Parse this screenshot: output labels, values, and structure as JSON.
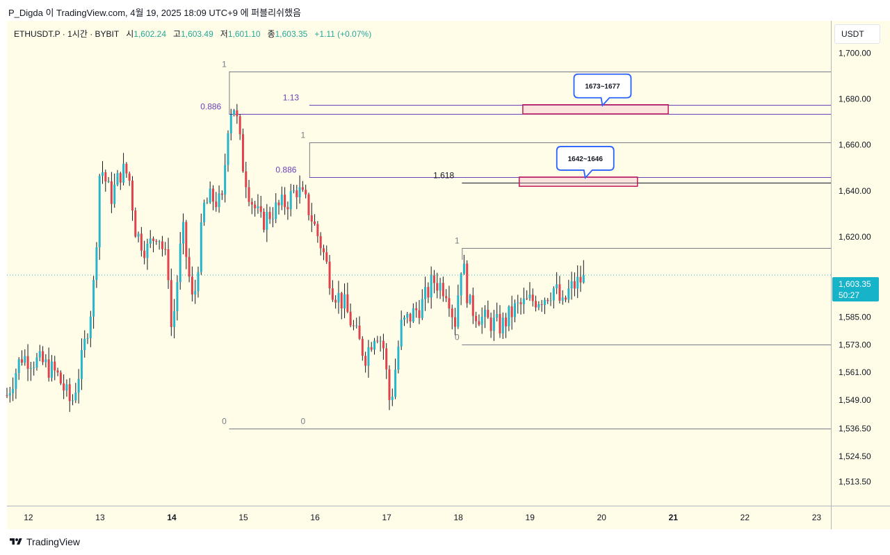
{
  "header": {
    "publish_line": "P_Digda 이 TradingView.com, 4월 19, 2025 18:09 UTC+9 에 퍼블리쉬했음"
  },
  "symbol_info": {
    "symbol": "ETHUSDT.P · 1시간 · BYBIT",
    "open_label": "시",
    "open": "1,602.24",
    "high_label": "고",
    "high": "1,603.49",
    "low_label": "저",
    "low": "1,601.10",
    "close_label": "종",
    "close": "1,603.35",
    "change": "+1.11 (+0.07%)"
  },
  "price_scale": {
    "currency": "USDT"
  },
  "last_price": {
    "price": "1,603.35",
    "countdown": "50:27"
  },
  "footer": {
    "brand": "TradingView"
  },
  "colors": {
    "background": "#fffde8",
    "up": "#26b5c9",
    "down": "#e0424b",
    "fib_purple": "#6a3fb8",
    "zone": "#c2185b",
    "callout": "#2962ff"
  },
  "chart_data": {
    "type": "candlestick",
    "ylim": [
      1503,
      1714
    ],
    "xlim": [
      11.7,
      23.2
    ],
    "y_ticks": [
      "1,700.00",
      "1,680.00",
      "1,660.00",
      "1,640.00",
      "1,620.00",
      "1,585.00",
      "1,573.00",
      "1,561.00",
      "1,549.00",
      "1,536.50",
      "1,524.50",
      "1,513.50"
    ],
    "y_tick_values": [
      1700,
      1680,
      1660,
      1640,
      1620,
      1585,
      1573,
      1561,
      1549,
      1536.5,
      1524.5,
      1513.5
    ],
    "x_ticks": [
      "12",
      "13",
      "14",
      "15",
      "16",
      "17",
      "18",
      "19",
      "20",
      "21",
      "22",
      "23"
    ],
    "x_tick_values": [
      12,
      13,
      14,
      15,
      16,
      17,
      18,
      19,
      20,
      21,
      22,
      23
    ],
    "x_tick_bold": [
      "14",
      "21"
    ],
    "current_price": 1603.35,
    "anchors": [
      {
        "x": 11.7,
        "c": 1551
      },
      {
        "x": 11.9,
        "c": 1568
      },
      {
        "x": 12.2,
        "c": 1565
      },
      {
        "x": 12.4,
        "c": 1560
      },
      {
        "x": 12.6,
        "c": 1547
      },
      {
        "x": 12.75,
        "c": 1567
      },
      {
        "x": 12.9,
        "c": 1594
      },
      {
        "x": 12.96,
        "c": 1625
      },
      {
        "x": 13.0,
        "c": 1652
      },
      {
        "x": 13.15,
        "c": 1637
      },
      {
        "x": 13.3,
        "c": 1649
      },
      {
        "x": 13.4,
        "c": 1647
      },
      {
        "x": 13.5,
        "c": 1622
      },
      {
        "x": 13.65,
        "c": 1614
      },
      {
        "x": 13.8,
        "c": 1623
      },
      {
        "x": 13.95,
        "c": 1606
      },
      {
        "x": 14.0,
        "c": 1577
      },
      {
        "x": 14.15,
        "c": 1624
      },
      {
        "x": 14.3,
        "c": 1589
      },
      {
        "x": 14.45,
        "c": 1633
      },
      {
        "x": 14.55,
        "c": 1637
      },
      {
        "x": 14.7,
        "c": 1634
      },
      {
        "x": 14.8,
        "c": 1675
      },
      {
        "x": 14.88,
        "c": 1677
      },
      {
        "x": 15.0,
        "c": 1650
      },
      {
        "x": 15.1,
        "c": 1637
      },
      {
        "x": 15.25,
        "c": 1626
      },
      {
        "x": 15.4,
        "c": 1631
      },
      {
        "x": 15.6,
        "c": 1635
      },
      {
        "x": 15.75,
        "c": 1641
      },
      {
        "x": 15.9,
        "c": 1633
      },
      {
        "x": 16.1,
        "c": 1615
      },
      {
        "x": 16.25,
        "c": 1597
      },
      {
        "x": 16.4,
        "c": 1591
      },
      {
        "x": 16.55,
        "c": 1579
      },
      {
        "x": 16.7,
        "c": 1568
      },
      {
        "x": 16.85,
        "c": 1580
      },
      {
        "x": 16.95,
        "c": 1573
      },
      {
        "x": 17.05,
        "c": 1546
      },
      {
        "x": 17.2,
        "c": 1581
      },
      {
        "x": 17.35,
        "c": 1586
      },
      {
        "x": 17.5,
        "c": 1591
      },
      {
        "x": 17.65,
        "c": 1601
      },
      {
        "x": 17.85,
        "c": 1597
      },
      {
        "x": 17.95,
        "c": 1582
      },
      {
        "x": 18.05,
        "c": 1611
      },
      {
        "x": 18.15,
        "c": 1590
      },
      {
        "x": 18.35,
        "c": 1584
      },
      {
        "x": 18.6,
        "c": 1581
      },
      {
        "x": 18.8,
        "c": 1589
      },
      {
        "x": 19.0,
        "c": 1592
      },
      {
        "x": 19.2,
        "c": 1594
      },
      {
        "x": 19.35,
        "c": 1598
      },
      {
        "x": 19.45,
        "c": 1589
      },
      {
        "x": 19.55,
        "c": 1597
      },
      {
        "x": 19.7,
        "c": 1601
      },
      {
        "x": 19.78,
        "c": 1603.35
      }
    ],
    "levels": [
      {
        "name": "fib1-top",
        "price": 1692,
        "x1": 14.8,
        "x2": 23.2,
        "color": "#787b86",
        "label": "1",
        "label_x": 14.7
      },
      {
        "name": "fib1-bottom",
        "price": 1536.5,
        "x1": 14.8,
        "x2": 23.2,
        "color": "#787b86",
        "label": "0",
        "label_x": 14.7
      },
      {
        "name": "fib1-0886",
        "price": 1673.5,
        "x1": 14.8,
        "x2": 23.2,
        "color": "#6a3fb8",
        "label": "0.886",
        "label_x": 14.4
      },
      {
        "name": "fib-113",
        "price": 1677.5,
        "x1": 15.92,
        "x2": 23.2,
        "color": "#6a3fb8",
        "label": "1.13",
        "label_x": 15.55
      },
      {
        "name": "fib2-top",
        "price": 1661,
        "x1": 15.92,
        "x2": 23.2,
        "color": "#787b86",
        "label": "1",
        "label_x": 15.8
      },
      {
        "name": "fib2-0886",
        "price": 1646,
        "x1": 15.92,
        "x2": 23.2,
        "color": "#6a3fb8",
        "label": "0.886",
        "label_x": 15.45
      },
      {
        "name": "fib2-bottom",
        "price": 1536.5,
        "x1": 15.92,
        "x2": 23.2,
        "color": "#787b86",
        "label": "0",
        "label_x": 15.8
      },
      {
        "name": "fib-1618",
        "price": 1643.5,
        "x1": 18.05,
        "x2": 23.2,
        "color": "#131722",
        "label": "1.618",
        "label_x": 17.65
      },
      {
        "name": "fib3-top",
        "price": 1615,
        "x1": 18.05,
        "x2": 23.2,
        "color": "#787b86",
        "label": "1",
        "label_x": 17.95
      },
      {
        "name": "fib3-bottom",
        "price": 1573,
        "x1": 18.05,
        "x2": 23.2,
        "color": "#787b86",
        "label": "0",
        "label_x": 17.95
      }
    ],
    "zones": [
      {
        "name": "zone-1673-1677",
        "from": 1673.5,
        "to": 1677.5,
        "x1": 18.9,
        "x2": 20.93,
        "label": "1673~1677"
      },
      {
        "name": "zone-1642-1646",
        "from": 1642,
        "to": 1646,
        "x1": 18.85,
        "x2": 20.5,
        "label": "1642~1646"
      }
    ]
  }
}
